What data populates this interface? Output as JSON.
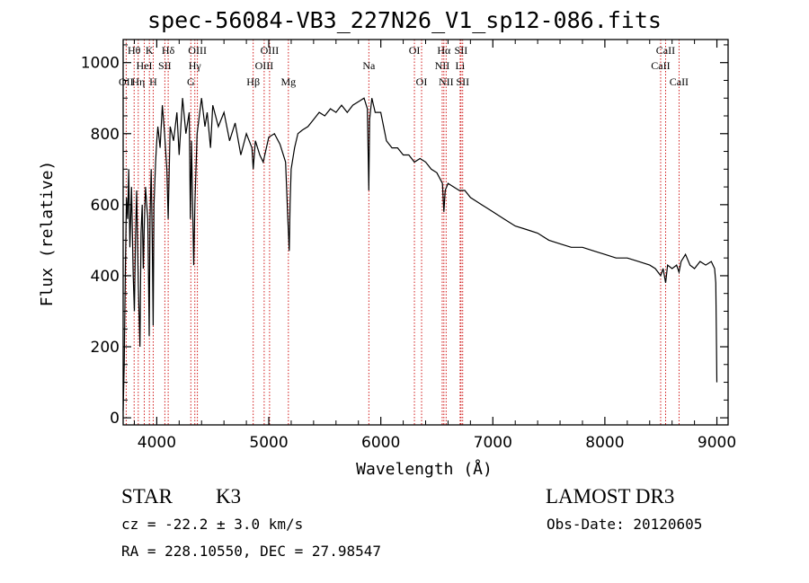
{
  "title": "spec-56084-VB3_227N26_V1_sp12-086.fits",
  "info": {
    "object_class": "STAR",
    "subclass": "K3",
    "survey": "LAMOST DR3",
    "cz": "cz = -22.2 ± 3.0 km/s",
    "obs_date": "Obs-Date: 20120605",
    "coords": "RA = 228.10550, DEC =  27.98547"
  },
  "chart_data": {
    "type": "line",
    "title": "spec-56084-VB3_227N26_V1_sp12-086.fits",
    "xlabel": "Wavelength (Å)",
    "ylabel": "Flux (relative)",
    "xlim": [
      3700,
      9100
    ],
    "ylim": [
      -20,
      1065
    ],
    "xticks": [
      4000,
      5000,
      6000,
      7000,
      8000,
      9000
    ],
    "yticks": [
      0,
      200,
      400,
      600,
      800,
      1000
    ],
    "line_color": "#000000",
    "marker_color": "#cc0000",
    "series": [
      {
        "name": "flux",
        "x": [
          3700,
          3710,
          3720,
          3730,
          3740,
          3750,
          3760,
          3775,
          3790,
          3800,
          3810,
          3820,
          3835,
          3850,
          3860,
          3870,
          3880,
          3890,
          3900,
          3910,
          3920,
          3930,
          3933,
          3940,
          3950,
          3960,
          3968,
          3975,
          3990,
          4000,
          4010,
          4030,
          4050,
          4070,
          4090,
          4102,
          4120,
          4150,
          4180,
          4200,
          4230,
          4260,
          4290,
          4300,
          4310,
          4330,
          4340,
          4360,
          4400,
          4430,
          4450,
          4480,
          4500,
          4550,
          4600,
          4650,
          4700,
          4750,
          4800,
          4850,
          4861,
          4880,
          4920,
          4950,
          5000,
          5050,
          5100,
          5150,
          5170,
          5183,
          5190,
          5200,
          5230,
          5260,
          5300,
          5350,
          5400,
          5450,
          5500,
          5550,
          5600,
          5650,
          5700,
          5750,
          5800,
          5850,
          5880,
          5893,
          5900,
          5920,
          5950,
          6000,
          6050,
          6100,
          6150,
          6200,
          6250,
          6300,
          6350,
          6400,
          6450,
          6500,
          6550,
          6563,
          6575,
          6600,
          6650,
          6700,
          6750,
          6800,
          6850,
          6900,
          6950,
          7000,
          7100,
          7200,
          7300,
          7400,
          7500,
          7600,
          7700,
          7800,
          7900,
          8000,
          8100,
          8200,
          8300,
          8400,
          8450,
          8498,
          8520,
          8542,
          8560,
          8600,
          8640,
          8662,
          8680,
          8720,
          8760,
          8800,
          8850,
          8900,
          8950,
          8980,
          8990,
          8995,
          9000
        ],
        "y": [
          20,
          150,
          420,
          620,
          560,
          700,
          480,
          650,
          400,
          300,
          500,
          640,
          380,
          200,
          520,
          600,
          420,
          560,
          650,
          600,
          560,
          300,
          230,
          560,
          700,
          500,
          260,
          600,
          720,
          780,
          820,
          760,
          880,
          800,
          700,
          560,
          820,
          780,
          860,
          740,
          900,
          800,
          860,
          560,
          780,
          430,
          600,
          800,
          900,
          820,
          860,
          760,
          880,
          820,
          860,
          780,
          830,
          740,
          800,
          760,
          700,
          780,
          740,
          720,
          790,
          800,
          770,
          720,
          560,
          470,
          600,
          700,
          760,
          800,
          810,
          820,
          840,
          860,
          850,
          870,
          860,
          880,
          860,
          880,
          890,
          900,
          870,
          640,
          840,
          900,
          860,
          860,
          780,
          760,
          760,
          740,
          740,
          720,
          730,
          720,
          700,
          690,
          660,
          580,
          640,
          660,
          650,
          640,
          640,
          620,
          610,
          600,
          590,
          580,
          560,
          540,
          530,
          520,
          500,
          490,
          480,
          480,
          470,
          460,
          450,
          450,
          440,
          430,
          420,
          400,
          420,
          380,
          430,
          420,
          430,
          410,
          440,
          460,
          430,
          420,
          440,
          430,
          440,
          420,
          380,
          250,
          100
        ]
      }
    ],
    "spectral_lines": [
      {
        "name": "Hθ",
        "wl": 3798,
        "row": 1
      },
      {
        "name": "OII",
        "wl": 3727,
        "row": 3
      },
      {
        "name": "Hη",
        "wl": 3835,
        "row": 3
      },
      {
        "name": "HeI",
        "wl": 3889,
        "row": 2
      },
      {
        "name": "K",
        "wl": 3934,
        "row": 1
      },
      {
        "name": "H",
        "wl": 3968,
        "row": 3
      },
      {
        "name": "SII",
        "wl": 4072,
        "row": 2
      },
      {
        "name": "Hδ",
        "wl": 4102,
        "row": 1
      },
      {
        "name": "G",
        "wl": 4304,
        "row": 3
      },
      {
        "name": "Hγ",
        "wl": 4340,
        "row": 2
      },
      {
        "name": "OIII",
        "wl": 4363,
        "row": 1
      },
      {
        "name": "Hβ",
        "wl": 4861,
        "row": 3
      },
      {
        "name": "OIII",
        "wl": 4959,
        "row": 2
      },
      {
        "name": "OIII",
        "wl": 5007,
        "row": 1
      },
      {
        "name": "Mg",
        "wl": 5175,
        "row": 3
      },
      {
        "name": "Na",
        "wl": 5893,
        "row": 2
      },
      {
        "name": "OI",
        "wl": 6300,
        "row": 1
      },
      {
        "name": "OI",
        "wl": 6364,
        "row": 3
      },
      {
        "name": "NII",
        "wl": 6548,
        "row": 2
      },
      {
        "name": "Hα",
        "wl": 6563,
        "row": 1
      },
      {
        "name": "NII",
        "wl": 6583,
        "row": 3
      },
      {
        "name": "Li",
        "wl": 6708,
        "row": 2
      },
      {
        "name": "SII",
        "wl": 6716,
        "row": 1
      },
      {
        "name": "SII",
        "wl": 6731,
        "row": 3
      },
      {
        "name": "CaII",
        "wl": 8498,
        "row": 2
      },
      {
        "name": "CaII",
        "wl": 8542,
        "row": 1
      },
      {
        "name": "CaII",
        "wl": 8662,
        "row": 3
      }
    ]
  }
}
